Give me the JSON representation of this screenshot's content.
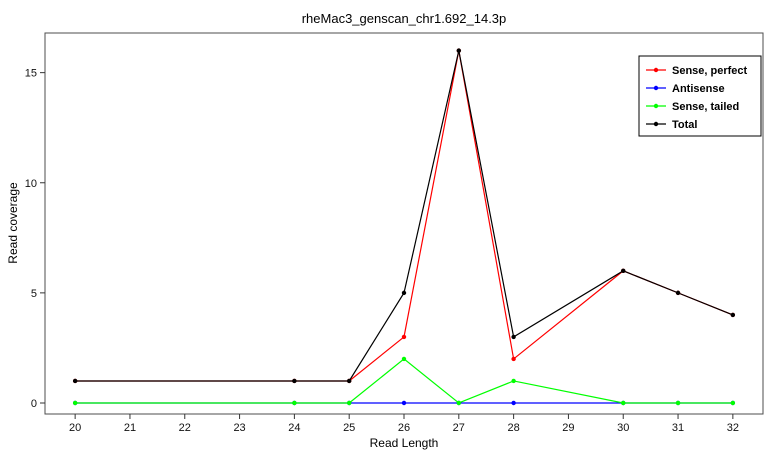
{
  "chart_data": {
    "type": "line",
    "title": "rheMac3_genscan_chr1.692_14.3p",
    "xlabel": "Read Length",
    "ylabel": "Read coverage",
    "x": [
      20,
      24,
      25,
      26,
      27,
      28,
      30,
      31,
      32
    ],
    "series": [
      {
        "name": "Sense, perfect",
        "color": "#ff0000",
        "values": [
          1,
          1,
          1,
          3,
          16,
          2,
          6,
          5,
          4
        ]
      },
      {
        "name": "Antisense",
        "color": "#0000ff",
        "values": [
          0,
          0,
          0,
          0,
          0,
          0,
          0,
          0,
          0
        ]
      },
      {
        "name": "Sense, tailed",
        "color": "#00ff00",
        "values": [
          0,
          0,
          0,
          2,
          0,
          1,
          0,
          0,
          0
        ]
      },
      {
        "name": "Total",
        "color": "#000000",
        "values": [
          1,
          1,
          1,
          5,
          16,
          3,
          6,
          5,
          4
        ]
      }
    ],
    "x_ticks": [
      20,
      21,
      22,
      23,
      24,
      25,
      26,
      27,
      28,
      29,
      30,
      31,
      32
    ],
    "y_ticks": [
      0,
      5,
      10,
      15
    ],
    "xlim": [
      19.45,
      32.55
    ],
    "ylim": [
      -0.5,
      16.8
    ],
    "grid": false,
    "legend_position": "top-right",
    "panel_border_color": "#4d4d4d",
    "tick_color": "#333333",
    "tick_label_color": "#111111"
  }
}
